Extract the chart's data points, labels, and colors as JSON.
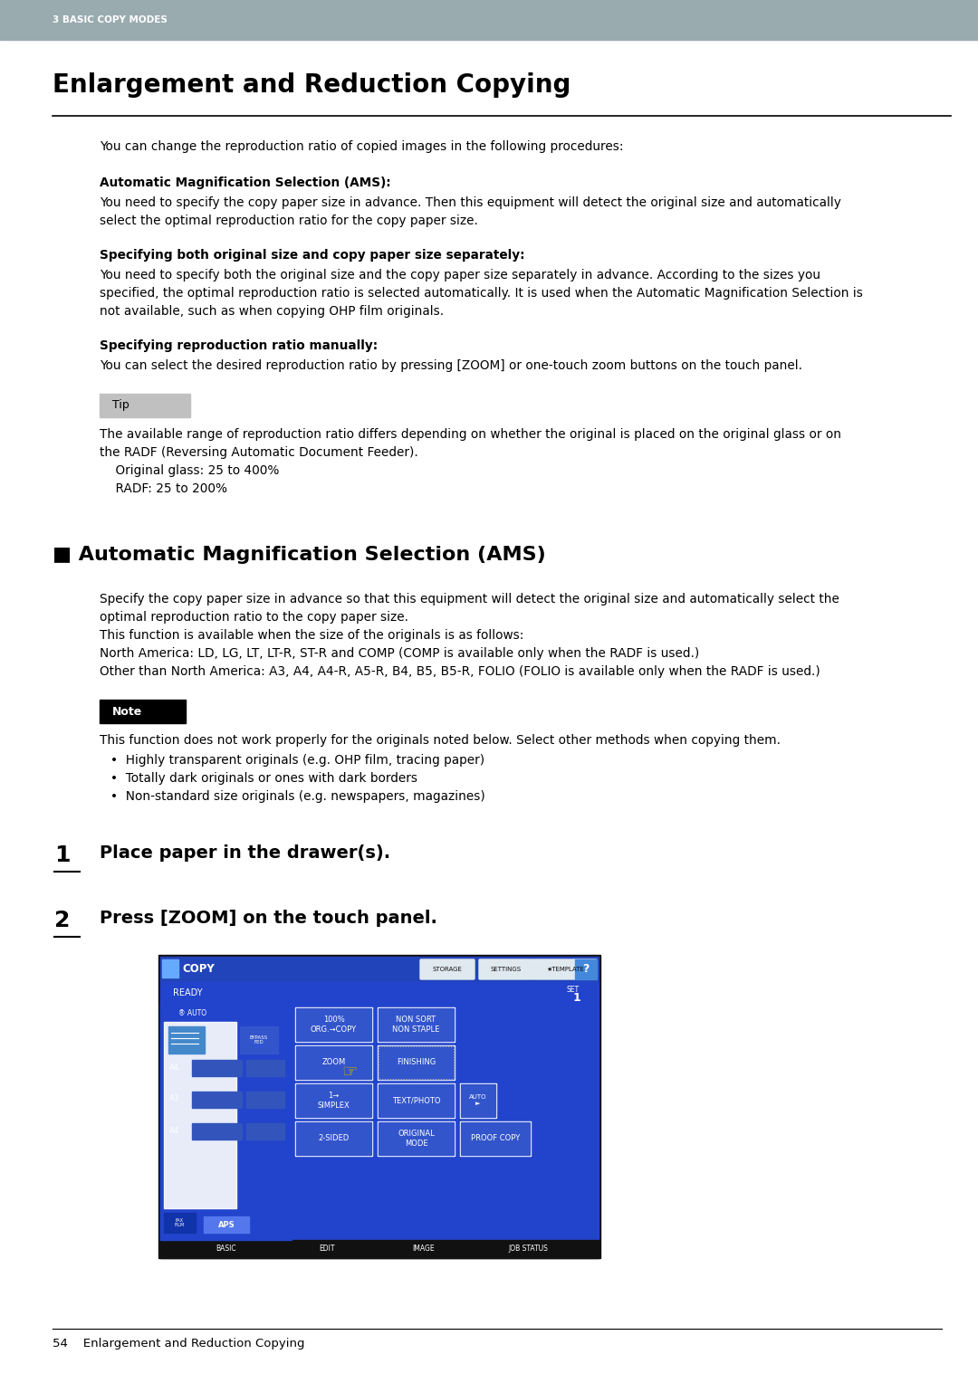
{
  "page_bg": "#ffffff",
  "header_bg": "#9aabb0",
  "header_text": "3 BASIC COPY MODES",
  "header_text_color": "#ffffff",
  "main_title": "Enlargement and Reduction Copying",
  "divider_color": "#000000",
  "body_text_color": "#000000",
  "intro_text": "You can change the reproduction ratio of copied images in the following procedures:",
  "subsections": [
    {
      "heading": "Automatic Magnification Selection (AMS):",
      "body_lines": [
        "You need to specify the copy paper size in advance. Then this equipment will detect the original size and automatically",
        "select the optimal reproduction ratio for the copy paper size."
      ]
    },
    {
      "heading": "Specifying both original size and copy paper size separately:",
      "body_lines": [
        "You need to specify both the original size and the copy paper size separately in advance. According to the sizes you",
        "specified, the optimal reproduction ratio is selected automatically. It is used when the Automatic Magnification Selection is",
        "not available, such as when copying OHP film originals."
      ]
    },
    {
      "heading": "Specifying reproduction ratio manually:",
      "body_lines": [
        "You can select the desired reproduction ratio by pressing [ZOOM] or one-touch zoom buttons on the touch panel."
      ]
    }
  ],
  "tip_label": "Tip",
  "tip_bg": "#c0c0c0",
  "tip_lines": [
    "The available range of reproduction ratio differs depending on whether the original is placed on the original glass or on",
    "the RADF (Reversing Automatic Document Feeder).",
    "    Original glass: 25 to 400%",
    "    RADF: 25 to 200%"
  ],
  "section2_title": "■ Automatic Magnification Selection (AMS)",
  "section2_body_lines": [
    "Specify the copy paper size in advance so that this equipment will detect the original size and automatically select the",
    "optimal reproduction ratio to the copy paper size.",
    "This function is available when the size of the originals is as follows:",
    "North America: LD, LG, LT, LT-R, ST-R and COMP (COMP is available only when the RADF is used.)",
    "Other than North America: A3, A4, A4-R, A5-R, B4, B5, B5-R, FOLIO (FOLIO is available only when the RADF is used.)"
  ],
  "note_label": "Note",
  "note_bg": "#000000",
  "note_text_color": "#ffffff",
  "note_body": "This function does not work properly for the originals noted below. Select other methods when copying them.",
  "note_bullets": [
    "Highly transparent originals (e.g. OHP film, tracing paper)",
    "Totally dark originals or ones with dark borders",
    "Non-standard size originals (e.g. newspapers, magazines)"
  ],
  "step1_text": "Place paper in the drawer(s).",
  "step2_text": "Press [ZOOM] on the touch panel.",
  "footer_text": "54    Enlargement and Reduction Copying",
  "screen_blue": "#2244cc",
  "screen_dark_blue": "#1133aa",
  "screen_header_blue": "#2244bb",
  "screen_btn_gray": "#d8d8d8",
  "screen_btn_blue": "#3355cc",
  "screen_black": "#111111"
}
